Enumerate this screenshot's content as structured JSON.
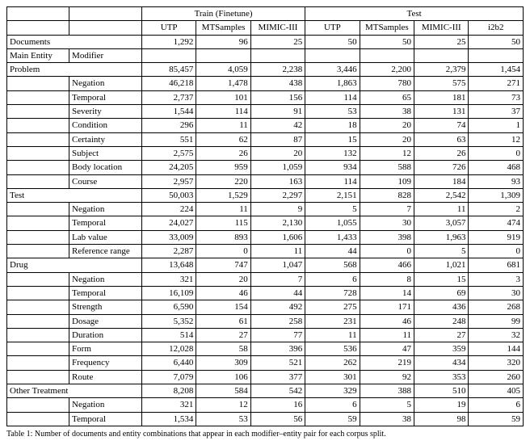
{
  "header": {
    "train_label": "Train (Finetune)",
    "test_label": "Test",
    "train_cols": [
      "UTP",
      "MTSamples",
      "MIMIC-III"
    ],
    "test_cols": [
      "UTP",
      "MTSamples",
      "MIMIC-III",
      "i2b2"
    ],
    "main_entity": "Main Entity",
    "modifier": "Modifier"
  },
  "docs_row": {
    "label": "Documents",
    "vals": [
      "1,292",
      "96",
      "25",
      "50",
      "50",
      "25",
      "50"
    ]
  },
  "groups": [
    {
      "label": "Problem",
      "vals": [
        "85,457",
        "4,059",
        "2,238",
        "3,446",
        "2,200",
        "2,379",
        "1,454"
      ],
      "rows": [
        {
          "label": "Negation",
          "vals": [
            "46,218",
            "1,478",
            "438",
            "1,863",
            "780",
            "575",
            "271"
          ]
        },
        {
          "label": "Temporal",
          "vals": [
            "2,737",
            "101",
            "156",
            "114",
            "65",
            "181",
            "73"
          ]
        },
        {
          "label": "Severity",
          "vals": [
            "1,544",
            "114",
            "91",
            "53",
            "38",
            "131",
            "37"
          ]
        },
        {
          "label": "Condition",
          "vals": [
            "296",
            "11",
            "42",
            "18",
            "20",
            "74",
            "1"
          ]
        },
        {
          "label": "Certainty",
          "vals": [
            "551",
            "62",
            "87",
            "15",
            "20",
            "63",
            "12"
          ]
        },
        {
          "label": "Subject",
          "vals": [
            "2,575",
            "26",
            "20",
            "132",
            "12",
            "26",
            "0"
          ]
        },
        {
          "label": "Body location",
          "vals": [
            "24,205",
            "959",
            "1,059",
            "934",
            "588",
            "726",
            "468"
          ]
        },
        {
          "label": "Course",
          "vals": [
            "2,957",
            "220",
            "163",
            "114",
            "109",
            "184",
            "93"
          ]
        }
      ]
    },
    {
      "label": "Test",
      "vals": [
        "50,003",
        "1,529",
        "2,297",
        "2,151",
        "828",
        "2,542",
        "1,309"
      ],
      "rows": [
        {
          "label": "Negation",
          "vals": [
            "224",
            "11",
            "9",
            "5",
            "7",
            "11",
            "2"
          ]
        },
        {
          "label": "Temporal",
          "vals": [
            "24,027",
            "115",
            "2,130",
            "1,055",
            "30",
            "3,057",
            "474"
          ]
        },
        {
          "label": "Lab value",
          "vals": [
            "33,009",
            "893",
            "1,606",
            "1,433",
            "398",
            "1,963",
            "919"
          ]
        },
        {
          "label": "Reference range",
          "vals": [
            "2,287",
            "0",
            "11",
            "44",
            "0",
            "5",
            "0"
          ]
        }
      ]
    },
    {
      "label": "Drug",
      "vals": [
        "13,648",
        "747",
        "1,047",
        "568",
        "466",
        "1,021",
        "681"
      ],
      "rows": [
        {
          "label": "Negation",
          "vals": [
            "321",
            "20",
            "7",
            "6",
            "8",
            "15",
            "3"
          ]
        },
        {
          "label": "Temporal",
          "vals": [
            "16,109",
            "46",
            "44",
            "728",
            "14",
            "69",
            "30"
          ]
        },
        {
          "label": "Strength",
          "vals": [
            "6,590",
            "154",
            "492",
            "275",
            "171",
            "436",
            "268"
          ]
        },
        {
          "label": "Dosage",
          "vals": [
            "5,352",
            "61",
            "258",
            "231",
            "46",
            "248",
            "99"
          ]
        },
        {
          "label": "Duration",
          "vals": [
            "514",
            "27",
            "77",
            "11",
            "11",
            "27",
            "32"
          ]
        },
        {
          "label": "Form",
          "vals": [
            "12,028",
            "58",
            "396",
            "536",
            "47",
            "359",
            "144"
          ]
        },
        {
          "label": "Frequency",
          "vals": [
            "6,440",
            "309",
            "521",
            "262",
            "219",
            "434",
            "320"
          ]
        },
        {
          "label": "Route",
          "vals": [
            "7,079",
            "106",
            "377",
            "301",
            "92",
            "353",
            "260"
          ]
        }
      ]
    },
    {
      "label": "Other Treatment",
      "vals": [
        "8,208",
        "584",
        "542",
        "329",
        "388",
        "510",
        "405"
      ],
      "rows": [
        {
          "label": "Negation",
          "vals": [
            "321",
            "12",
            "16",
            "6",
            "5",
            "19",
            "6"
          ]
        },
        {
          "label": "Temporal",
          "vals": [
            "1,534",
            "53",
            "56",
            "59",
            "38",
            "98",
            "59"
          ]
        }
      ]
    }
  ],
  "caption": "Table 1: Number of documents and entity combinations that appear in each modifier–entity pair for each corpus split."
}
